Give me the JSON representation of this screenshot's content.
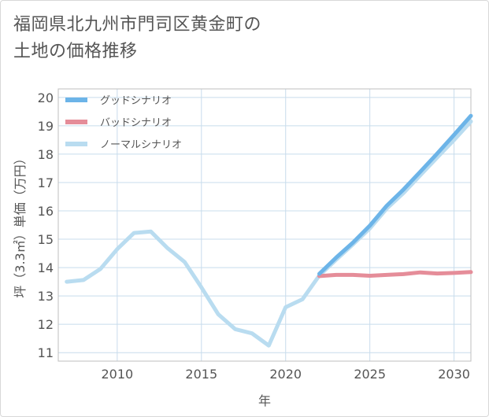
{
  "title": {
    "line1": "福岡県北九州市門司区黄金町の",
    "line2": "土地の価格推移"
  },
  "chart_data": {
    "type": "line",
    "xlabel": "年",
    "ylabel": "坪（3.3㎡）単価（万円）",
    "xlim": [
      2006.5,
      2031
    ],
    "ylim": [
      10.7,
      20.3
    ],
    "xticks": [
      2010,
      2015,
      2020,
      2025,
      2030
    ],
    "yticks": [
      11,
      12,
      13,
      14,
      15,
      16,
      17,
      18,
      19,
      20
    ],
    "grid": true,
    "legend_position": "top-left",
    "series": [
      {
        "name": "グッドシナリオ",
        "color": "#6cb4e8",
        "x": [
          2022,
          2023,
          2024,
          2025,
          2026,
          2027,
          2028,
          2029,
          2030,
          2031
        ],
        "y": [
          13.78,
          14.35,
          14.88,
          15.48,
          16.18,
          16.75,
          17.38,
          18.02,
          18.68,
          19.35
        ]
      },
      {
        "name": "バッドシナリオ",
        "color": "#e58d99",
        "x": [
          2022,
          2023,
          2024,
          2025,
          2026,
          2027,
          2028,
          2029,
          2030,
          2031
        ],
        "y": [
          13.7,
          13.74,
          13.74,
          13.71,
          13.74,
          13.77,
          13.83,
          13.79,
          13.81,
          13.84
        ]
      },
      {
        "name": "ノーマルシナリオ",
        "color": "#b9dcf0",
        "x": [
          2007,
          2008,
          2009,
          2010,
          2011,
          2012,
          2013,
          2014,
          2015,
          2016,
          2017,
          2018,
          2019,
          2020,
          2021,
          2022,
          2023,
          2024,
          2025,
          2026,
          2027,
          2028,
          2029,
          2030,
          2031
        ],
        "y": [
          13.5,
          13.56,
          13.95,
          14.65,
          15.22,
          15.27,
          14.68,
          14.2,
          13.3,
          12.35,
          11.83,
          11.68,
          11.25,
          12.6,
          12.88,
          13.72,
          14.28,
          14.82,
          15.38,
          16.08,
          16.63,
          17.26,
          17.88,
          18.5,
          19.15
        ]
      }
    ]
  }
}
